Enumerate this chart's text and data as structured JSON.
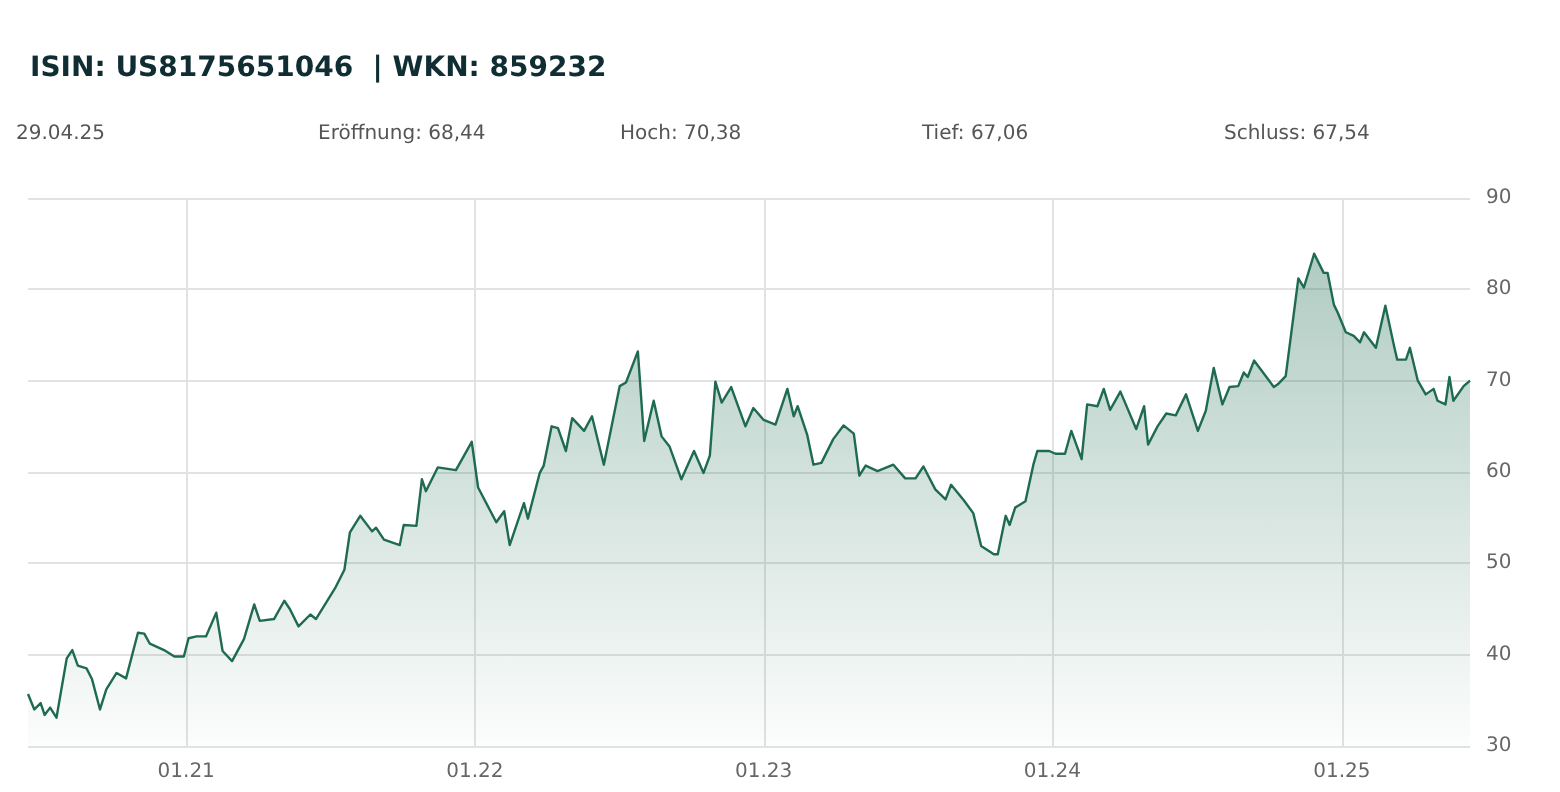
{
  "chart_data": {
    "type": "area",
    "subtitle": "ISIN: US8175651046  | WKN: 859232",
    "annotations": [
      "29.04.25",
      "Eröffnung: 68,44",
      "Hoch: 70,38",
      "Tief: 67,06",
      "Schluss: 67,54"
    ],
    "xlim": [
      "2020-06-15",
      "2025-06-12"
    ],
    "xticks": [
      {
        "value": "2021-01-01",
        "label": "01.21"
      },
      {
        "value": "2022-01-01",
        "label": "01.22"
      },
      {
        "value": "2023-01-01",
        "label": "01.23"
      },
      {
        "value": "2024-01-01",
        "label": "01.24"
      },
      {
        "value": "2025-01-01",
        "label": "01.25"
      }
    ],
    "ylim": [
      30,
      90
    ],
    "yticks": [
      30,
      40,
      50,
      60,
      70,
      80,
      90
    ],
    "grid": true,
    "x": [
      "2020-06-15",
      "2020-06-23",
      "2020-07-01",
      "2020-07-06",
      "2020-07-13",
      "2020-07-21",
      "2020-08-03",
      "2020-08-10",
      "2020-08-17",
      "2020-08-28",
      "2020-09-04",
      "2020-09-14",
      "2020-09-22",
      "2020-10-05",
      "2020-10-17",
      "2020-11-01",
      "2020-11-09",
      "2020-11-16",
      "2020-12-04",
      "2020-12-17",
      "2020-12-29",
      "2021-01-04",
      "2021-01-14",
      "2021-01-26",
      "2021-02-08",
      "2021-02-16",
      "2021-02-28",
      "2021-03-15",
      "2021-03-28",
      "2021-04-04",
      "2021-04-22",
      "2021-05-05",
      "2021-05-12",
      "2021-05-23",
      "2021-06-07",
      "2021-06-14",
      "2021-06-24",
      "2021-07-09",
      "2021-07-20",
      "2021-07-27",
      "2021-08-09",
      "2021-08-24",
      "2021-08-29",
      "2021-09-08",
      "2021-09-28",
      "2021-10-03",
      "2021-10-19",
      "2021-10-26",
      "2021-10-31",
      "2021-11-15",
      "2021-12-08",
      "2021-12-28",
      "2022-01-05",
      "2022-01-28",
      "2022-02-07",
      "2022-02-14",
      "2022-03-04",
      "2022-03-09",
      "2022-03-24",
      "2022-03-29",
      "2022-04-08",
      "2022-04-16",
      "2022-04-26",
      "2022-05-04",
      "2022-05-19",
      "2022-05-29",
      "2022-06-13",
      "2022-07-03",
      "2022-07-11",
      "2022-07-26",
      "2022-08-03",
      "2022-08-15",
      "2022-08-25",
      "2022-09-04",
      "2022-09-19",
      "2022-10-05",
      "2022-10-17",
      "2022-10-25",
      "2022-11-01",
      "2022-11-09",
      "2022-11-21",
      "2022-12-09",
      "2022-12-19",
      "2023-01-01",
      "2023-01-16",
      "2023-01-31",
      "2023-02-08",
      "2023-02-13",
      "2023-02-25",
      "2023-03-05",
      "2023-03-15",
      "2023-03-30",
      "2023-04-12",
      "2023-04-25",
      "2023-05-02",
      "2023-05-10",
      "2023-05-25",
      "2023-06-14",
      "2023-06-29",
      "2023-07-12",
      "2023-07-22",
      "2023-08-06",
      "2023-08-19",
      "2023-08-26",
      "2023-09-11",
      "2023-09-23",
      "2023-10-03",
      "2023-10-19",
      "2023-10-24",
      "2023-11-03",
      "2023-11-08",
      "2023-11-15",
      "2023-11-28",
      "2023-12-08",
      "2023-12-13",
      "2023-12-28",
      "2024-01-05",
      "2024-01-17",
      "2024-01-25",
      "2024-02-07",
      "2024-02-14",
      "2024-02-27",
      "2024-03-06",
      "2024-03-14",
      "2024-03-27",
      "2024-04-16",
      "2024-04-26",
      "2024-05-01",
      "2024-05-13",
      "2024-05-24",
      "2024-06-05",
      "2024-06-18",
      "2024-07-03",
      "2024-07-13",
      "2024-07-23",
      "2024-08-03",
      "2024-08-12",
      "2024-08-23",
      "2024-08-30",
      "2024-09-04",
      "2024-09-12",
      "2024-10-07",
      "2024-10-12",
      "2024-10-22",
      "2024-11-07",
      "2024-11-14",
      "2024-11-27",
      "2024-12-09",
      "2024-12-14",
      "2024-12-22",
      "2024-12-27",
      "2025-01-06",
      "2025-01-16",
      "2025-01-24",
      "2025-01-29",
      "2025-02-13",
      "2025-02-25",
      "2025-03-08",
      "2025-03-12",
      "2025-03-23",
      "2025-03-28",
      "2025-04-07",
      "2025-04-17",
      "2025-04-27",
      "2025-05-02",
      "2025-05-12",
      "2025-05-17",
      "2025-05-22",
      "2025-06-04",
      "2025-06-12"
    ],
    "series": [
      {
        "color": "#1e6b52",
        "values": [
          35.7,
          34.0,
          34.7,
          33.4,
          34.2,
          33.1,
          39.6,
          40.5,
          38.8,
          38.5,
          37.3,
          34.0,
          36.2,
          38.0,
          37.4,
          42.4,
          42.3,
          41.2,
          40.5,
          39.8,
          39.8,
          41.8,
          42.0,
          42.0,
          44.6,
          40.4,
          39.3,
          41.7,
          45.5,
          43.7,
          43.9,
          45.9,
          45.0,
          43.1,
          44.4,
          43.9,
          45.3,
          47.4,
          49.3,
          53.4,
          55.2,
          53.5,
          53.9,
          52.6,
          52.0,
          54.2,
          54.1,
          59.2,
          57.9,
          60.5,
          60.2,
          63.3,
          58.3,
          54.5,
          55.7,
          52.0,
          56.6,
          54.9,
          59.9,
          60.7,
          65.0,
          64.8,
          62.3,
          65.9,
          64.5,
          66.1,
          60.8,
          69.4,
          69.8,
          73.2,
          63.4,
          67.8,
          63.9,
          62.8,
          59.2,
          62.3,
          59.9,
          61.8,
          69.9,
          67.6,
          69.3,
          65.0,
          67.0,
          65.7,
          65.2,
          69.1,
          66.1,
          67.2,
          64.1,
          60.8,
          61.0,
          63.6,
          65.1,
          64.2,
          59.6,
          60.7,
          60.1,
          60.8,
          59.3,
          59.3,
          60.6,
          58.1,
          57.0,
          58.6,
          56.9,
          55.5,
          51.9,
          51.0,
          51.0,
          55.2,
          54.2,
          56.1,
          56.8,
          60.8,
          62.3,
          62.3,
          62.0,
          62.0,
          64.5,
          61.4,
          67.4,
          67.2,
          69.1,
          66.8,
          68.8,
          64.7,
          67.2,
          63.0,
          65.0,
          66.4,
          66.2,
          68.5,
          64.5,
          66.7,
          71.4,
          67.4,
          69.3,
          69.4,
          70.9,
          70.4,
          72.2,
          69.3,
          69.6,
          70.5,
          81.2,
          80.2,
          83.9,
          81.8,
          81.8,
          78.3,
          77.4,
          75.3,
          74.9,
          74.2,
          75.3,
          73.6,
          78.2,
          73.8,
          72.3,
          72.3,
          73.6,
          70.0,
          68.5,
          69.1,
          67.8,
          67.4,
          70.4,
          67.8,
          69.4,
          70.0
        ]
      }
    ]
  }
}
